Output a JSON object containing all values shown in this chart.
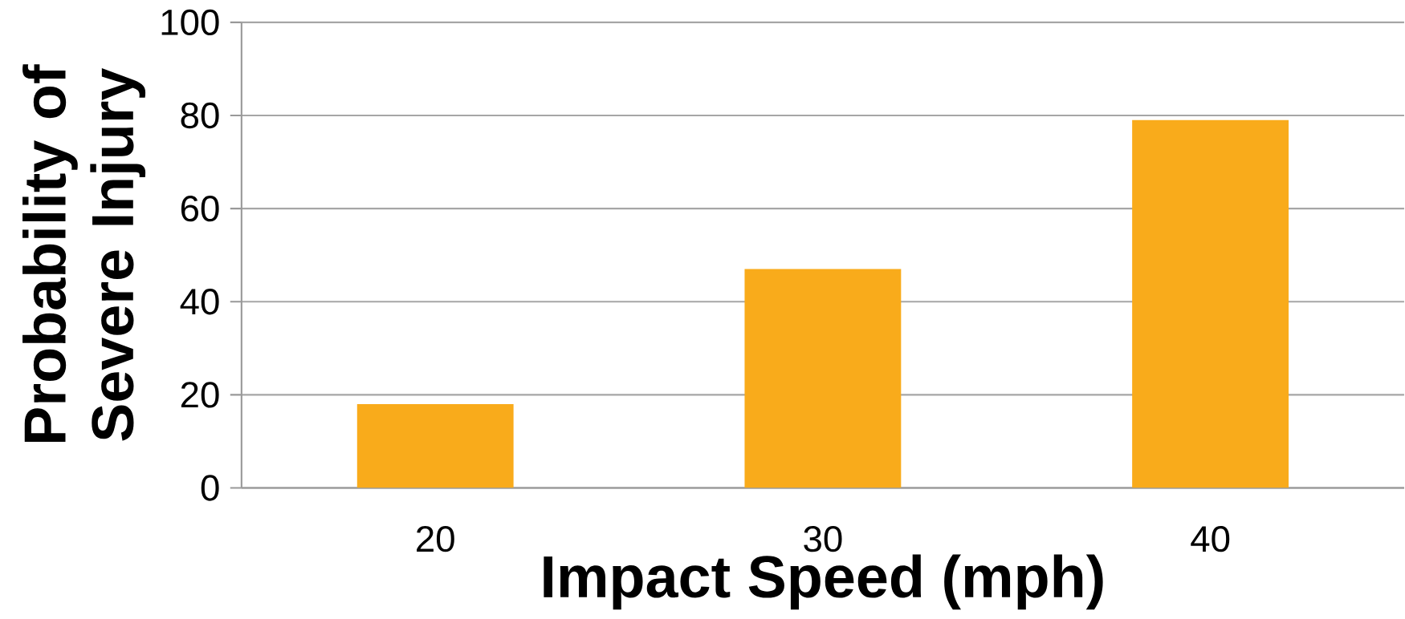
{
  "chart_data": {
    "type": "bar",
    "xlabel": "Impact Speed (mph)",
    "ylabel": "Probability of Severe Injury",
    "categories": [
      "20",
      "30",
      "40"
    ],
    "values": [
      18,
      47,
      79
    ],
    "color": "#f9ab1b",
    "ylim": [
      0,
      100
    ],
    "yticks": [
      0,
      20,
      40,
      60,
      80,
      100
    ],
    "grid": "y"
  }
}
